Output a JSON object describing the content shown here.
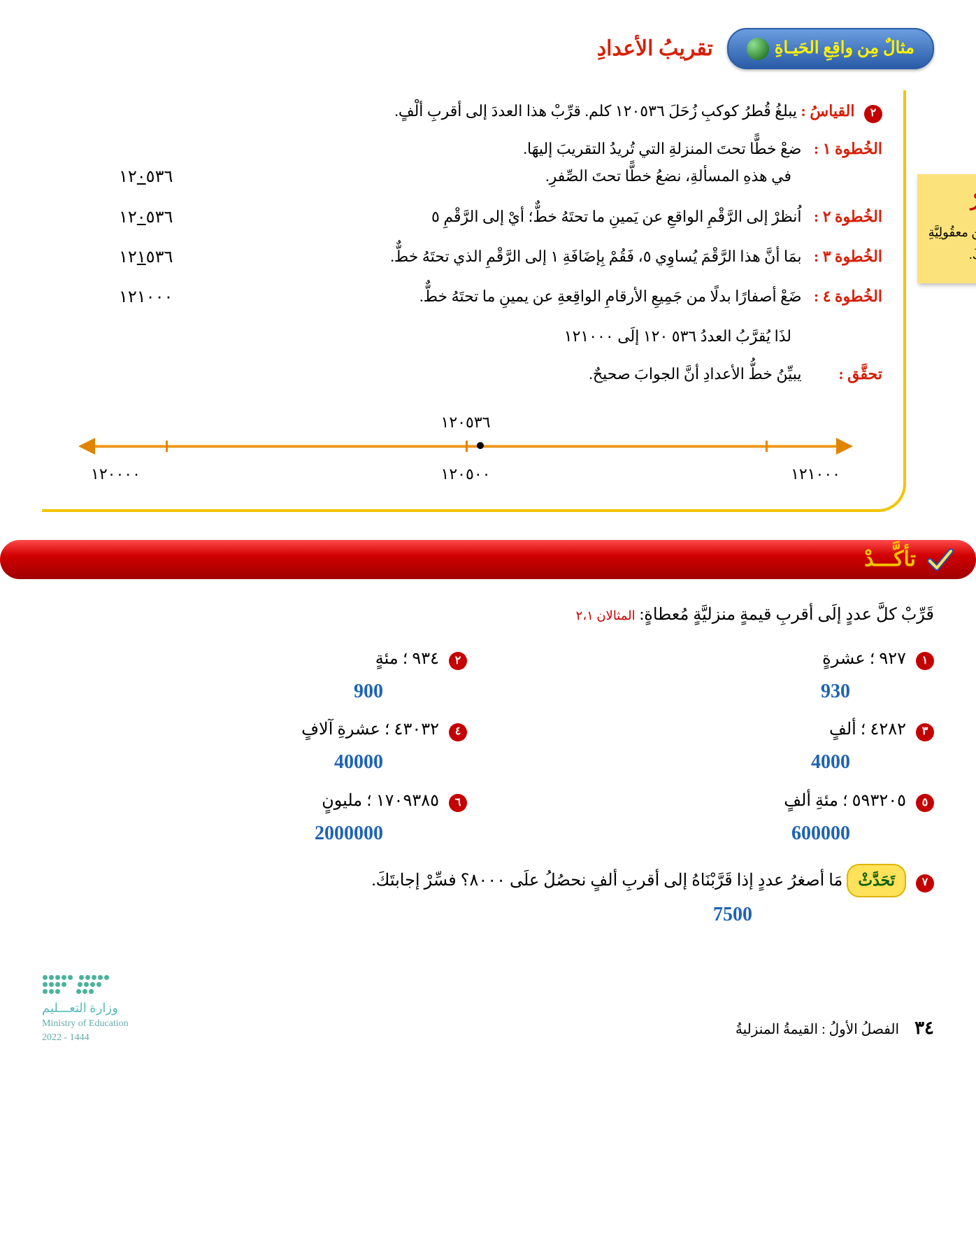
{
  "header": {
    "badge": "مثالٌ مِن واقِعِ الحَيـاةِ",
    "title": "تقريبُ الأعدادِ"
  },
  "problem": {
    "bullet": "٢",
    "label": "القياسُ :",
    "text": "يبلغُ قُطرُ كوكبِ زُحَلَ ١٢٠٥٣٦ كلم. قرِّبْ هذا العددَ إلى أقربِ ألْفٍ."
  },
  "steps": [
    {
      "label": "الخُطوة ١ :",
      "text": "ضعْ خطًّا تحتَ المنزلةِ التي تُريدُ التقريبَ إليهَا.",
      "text2": "في هذهِ المسألةِ، نضعُ خطًّا تحتَ الصِّفرِ.",
      "value_pre": "١٢",
      "value_u": "٠",
      "value_post": "٥٣٦"
    },
    {
      "label": "الخُطوة ٢ :",
      "text": "اُنظرْ إلى الرَّقْمِ الواقعِ عن يَمينِ ما تحتَهُ خطٌّ؛ أيْ إلى الرَّقْمِ ٥",
      "value_pre": "١٢",
      "value_u": "٠",
      "value_post": "٥٣٦"
    },
    {
      "label": "الخُطوة ٣ :",
      "text": "بمَا أنَّ هذا الرَّقْمَ يُساوِي ٥، فَقُمْ بِإضَافَةِ ١ إلى الرَّقْمِ الذي تحتَهُ خطٌّ.",
      "value_pre": "١٢",
      "value_u": "١",
      "value_post": "٥٣٦"
    },
    {
      "label": "الخُطوة ٤ :",
      "text": "ضَعْ أصفارًا بدلًا من جَمِيعِ الأرقامِ الواقِعةِ عن يمينِ ما تحتَهُ خطٌّ.",
      "value_plain": "١٢١٠٠٠"
    }
  ],
  "conclusion": "لذَا يُقرَّبُ العددُ ٥٣٦ ١٢٠ إلَى ١٢١٠٠٠",
  "verify": {
    "label": "تحقَّق :",
    "text": "يبيِّنُ خطُّ الأعدادِ أنَّ الجوابَ صحيحٌ."
  },
  "sticky": {
    "title": "تَذَكَّرْ",
    "text": "تَحقَّقْ دائمًا مِن معقُولِيَّةِ إجابتِكَ."
  },
  "numberline": {
    "top_label": "١٢٠٥٣٦",
    "left_label": "١٢١٠٠٠",
    "mid_label": "١٢٠٥٠٠",
    "right_label": "١٢٠٠٠٠",
    "dot_percent": 52,
    "ticks_percent": [
      10,
      50,
      90
    ],
    "bar_color": "#e08400"
  },
  "banner": {
    "text": "تأكَّـــدْ"
  },
  "exercises": {
    "intro": "قَرِّبْ كلَّ عددٍ إلَى أقربِ قيمةٍ منزليَّةٍ مُعطاةٍ:",
    "intro_ref": "المثالان ٢،١",
    "items": [
      {
        "n": "١",
        "q": "٩٢٧ ؛ عشرةٍ",
        "a": "930"
      },
      {
        "n": "٢",
        "q": "٩٣٤ ؛ مئةٍ",
        "a": "900"
      },
      {
        "n": "٣",
        "q": "٤٢٨٢ ؛ ألفٍ",
        "a": "4000"
      },
      {
        "n": "٤",
        "q": "٤٣٠٣٢ ؛ عشرةِ آلافٍ",
        "a": "40000"
      },
      {
        "n": "٥",
        "q": "٥٩٣٢٠٥ ؛ مئةِ ألفٍ",
        "a": "600000"
      },
      {
        "n": "٦",
        "q": "١٧٠٩٣٨٥ ؛ مليونٍ",
        "a": "2000000"
      }
    ],
    "talk": {
      "n": "٧",
      "bubble": "تَحَدَّثْ",
      "q": "مَا أصغرُ عددٍ إذا قَرَّبْنَاهُ إلى أقربِ ألفٍ نحصُلُ علَى ٨٠٠٠؟ فسِّرْ إجابتَكَ.",
      "a": "7500"
    }
  },
  "footer": {
    "page": "٣٤",
    "chapter": "الفصلُ الأولُ :  القيمةُ المنزليةُ",
    "ministry_ar": "وزارة التعـــليم",
    "ministry_en": "Ministry of Education",
    "year": "2022 - 1444"
  },
  "colors": {
    "red": "#d81e05",
    "blue": "#1f63b5",
    "yellow": "#f4c400",
    "sticky": "#fce27a"
  }
}
